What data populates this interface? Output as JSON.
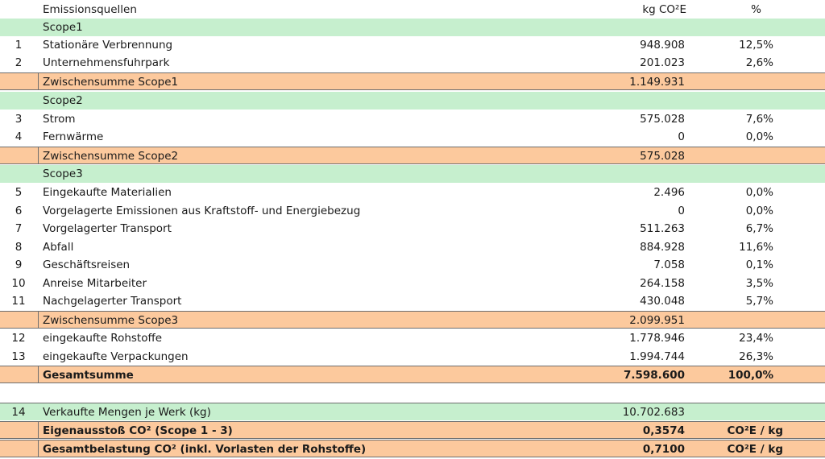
{
  "header": {
    "label": "Emissionsquellen",
    "value": "kg CO²E",
    "pct": "%"
  },
  "rows": [
    {
      "type": "scope",
      "label": "Scope1"
    },
    {
      "type": "item",
      "num": "1",
      "label": "Stationäre Verbrennung",
      "value": "948.908",
      "pct": "12,5%"
    },
    {
      "type": "item",
      "num": "2",
      "label": "Unternehmensfuhrpark",
      "value": "201.023",
      "pct": "2,6%"
    },
    {
      "type": "subtotal",
      "label": "Zwischensumme Scope1",
      "value": "1.149.931"
    },
    {
      "type": "scope",
      "label": "Scope2"
    },
    {
      "type": "item",
      "num": "3",
      "label": "Strom",
      "value": "575.028",
      "pct": "7,6%"
    },
    {
      "type": "item",
      "num": "4",
      "label": "Fernwärme",
      "value": "0",
      "pct": "0,0%"
    },
    {
      "type": "subtotal",
      "label": "Zwischensumme Scope2",
      "value": "575.028"
    },
    {
      "type": "scope",
      "label": "Scope3"
    },
    {
      "type": "item",
      "num": "5",
      "label": "Eingekaufte Materialien",
      "value": "2.496",
      "pct": "0,0%"
    },
    {
      "type": "item",
      "num": "6",
      "label": "Vorgelagerte Emissionen aus Kraftstoff- und Energiebezug",
      "value": "0",
      "pct": "0,0%"
    },
    {
      "type": "item",
      "num": "7",
      "label": "Vorgelagerter Transport",
      "value": "511.263",
      "pct": "6,7%"
    },
    {
      "type": "item",
      "num": "8",
      "label": "Abfall",
      "value": "884.928",
      "pct": "11,6%"
    },
    {
      "type": "item",
      "num": "9",
      "label": "Geschäftsreisen",
      "value": "7.058",
      "pct": "0,1%"
    },
    {
      "type": "item",
      "num": "10",
      "label": "Anreise Mitarbeiter",
      "value": "264.158",
      "pct": "3,5%"
    },
    {
      "type": "item",
      "num": "11",
      "label": "Nachgelagerter Transport",
      "value": "430.048",
      "pct": "5,7%"
    },
    {
      "type": "subtotal",
      "label": "Zwischensumme Scope3",
      "value": "2.099.951"
    },
    {
      "type": "item",
      "num": "12",
      "label": "eingekaufte Rohstoffe",
      "value": "1.778.946",
      "pct": "23,4%"
    },
    {
      "type": "item",
      "num": "13",
      "label": "eingekaufte Verpackungen",
      "value": "1.994.744",
      "pct": "26,3%"
    },
    {
      "type": "total",
      "label": "Gesamtsumme",
      "value": "7.598.600",
      "pct": "100,0%"
    }
  ],
  "sales": {
    "num": "14",
    "label": "Verkaufte Mengen je Werk (kg)",
    "value": "10.702.683"
  },
  "ratios": [
    {
      "label": "Eigenausstoß CO² (Scope 1 - 3)",
      "value": "0,3574",
      "unit": "CO²E / kg"
    },
    {
      "label": "Gesamtbelastung CO² (inkl. Vorlasten der Rohstoffe)",
      "value": "0,7100",
      "unit": "CO²E / kg"
    }
  ]
}
